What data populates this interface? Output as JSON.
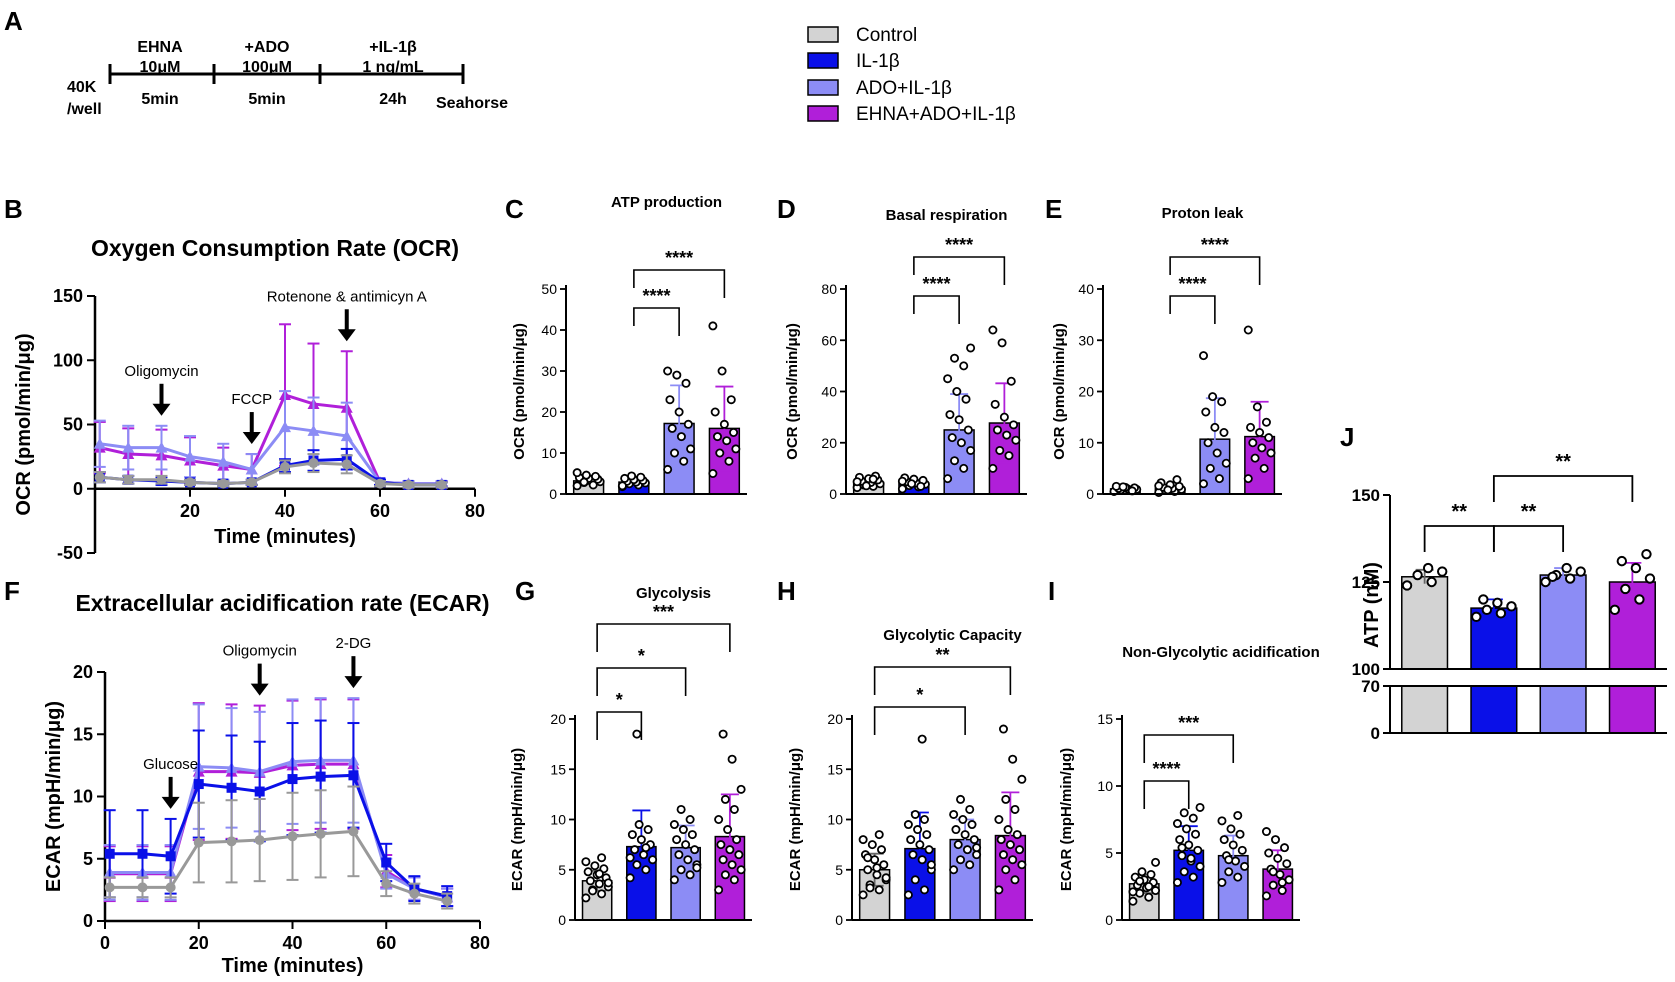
{
  "colors": {
    "control": "#d3d3d3",
    "il1b": "#0a10e8",
    "ado": "#8c8cf5",
    "ehna": "#b01fd9",
    "grey_line": "#999999"
  },
  "panel_letters": [
    "A",
    "B",
    "C",
    "D",
    "E",
    "F",
    "G",
    "H",
    "I",
    "J"
  ],
  "legend": [
    "Control",
    "IL-1β",
    "ADO+IL-1β",
    "EHNA+ADO+IL-1β"
  ],
  "timeline": {
    "start_top": "40K",
    "start_bottom": "/well",
    "steps": [
      {
        "top1": "EHNA",
        "top2": "10μM",
        "bottom": "5min"
      },
      {
        "top1": "+ADO",
        "top2": "100μM",
        "bottom": "5min"
      },
      {
        "top1": "+IL-1β",
        "top2": "1 ng/mL",
        "bottom": "24h"
      }
    ],
    "end": "Seahorse"
  },
  "chart_data": [
    {
      "id": "B",
      "type": "line",
      "title": "Oxygen Consumption Rate (OCR)",
      "xlabel": "Time (minutes)",
      "ylabel": "OCR (pmol/min/μg)",
      "xlim": [
        0,
        80
      ],
      "ylim": [
        -50,
        150
      ],
      "xticks": [
        20,
        40,
        60,
        80
      ],
      "yticks": [
        -50,
        0,
        50,
        100,
        150
      ],
      "x": [
        1,
        7,
        14,
        20,
        27,
        33,
        40,
        46,
        53,
        60,
        66,
        73
      ],
      "series": [
        {
          "name": "Control",
          "color": "#999999",
          "marker": "circle",
          "values": [
            9,
            7,
            7,
            5,
            4,
            5,
            17,
            20,
            19,
            4,
            3,
            3
          ],
          "err": [
            4,
            3,
            3,
            2,
            2,
            2,
            5,
            7,
            7,
            2,
            2,
            2
          ]
        },
        {
          "name": "IL-1β",
          "color": "#0a10e8",
          "marker": "square",
          "values": [
            9,
            7,
            6,
            5,
            4,
            5,
            18,
            22,
            23,
            5,
            3,
            3
          ],
          "err": [
            4,
            3,
            3,
            2,
            2,
            2,
            5,
            8,
            8,
            2,
            2,
            2
          ]
        },
        {
          "name": "ADO+IL-1β",
          "color": "#8c8cf5",
          "marker": "triangle",
          "values": [
            35,
            32,
            32,
            25,
            21,
            15,
            48,
            45,
            41,
            5,
            4,
            4
          ],
          "err": [
            18,
            17,
            17,
            16,
            14,
            12,
            28,
            26,
            26,
            3,
            2,
            2
          ]
        },
        {
          "name": "EHNA+ADO+IL-1β",
          "color": "#b01fd9",
          "marker": "triangle",
          "values": [
            32,
            27,
            26,
            22,
            18,
            15,
            73,
            66,
            63,
            5,
            4,
            4
          ],
          "err": [
            20,
            20,
            20,
            18,
            14,
            12,
            55,
            47,
            44,
            3,
            2,
            2
          ]
        }
      ],
      "annotations": [
        {
          "label": "Oligomycin",
          "x": 14
        },
        {
          "label": "FCCP",
          "x": 33
        },
        {
          "label": "Rotenone & antimicyn A",
          "x": 53
        }
      ]
    },
    {
      "id": "C",
      "type": "bar",
      "title": "ATP production",
      "ylabel": "OCR (pmol/min/μg)",
      "ylim": [
        0,
        50
      ],
      "yticks": [
        0,
        10,
        20,
        30,
        40,
        50
      ],
      "categories": [
        "Control",
        "IL-1β",
        "ADO+IL-1β",
        "EHNA+ADO+IL-1β"
      ],
      "values": [
        3.2,
        2.9,
        17.2,
        16.0
      ],
      "err": [
        0.8,
        0.8,
        9.3,
        10.2
      ],
      "points": [
        [
          2.0,
          2.5,
          2.8,
          3.0,
          3.2,
          3.4,
          3.6,
          3.8,
          4.0,
          4.3,
          4.6,
          5.2,
          2.2,
          2.9
        ],
        [
          1.8,
          2.2,
          2.5,
          2.7,
          2.9,
          3.1,
          3.3,
          3.5,
          3.8,
          4.1,
          4.4,
          2.0
        ],
        [
          6,
          8,
          10,
          11,
          14,
          16,
          17,
          20,
          23,
          27,
          29,
          30
        ],
        [
          5,
          8,
          10,
          11,
          13,
          14,
          15,
          17,
          20,
          23,
          30,
          41
        ]
      ],
      "sig": [
        {
          "from": 1,
          "to": 2,
          "label": "****",
          "level": 1
        },
        {
          "from": 1,
          "to": 3,
          "label": "****",
          "level": 2
        }
      ]
    },
    {
      "id": "D",
      "type": "bar",
      "title": "Basal respiration",
      "ylabel": "OCR (pmol/min/μg)",
      "ylim": [
        0,
        80
      ],
      "yticks": [
        0,
        20,
        40,
        60,
        80
      ],
      "categories": [
        "Control",
        "IL-1β",
        "ADO+IL-1β",
        "EHNA+ADO+IL-1β"
      ],
      "values": [
        4.5,
        4.2,
        25.0,
        27.7
      ],
      "err": [
        1.2,
        1.2,
        14.0,
        15.5
      ],
      "points": [
        [
          2.5,
          3,
          3.5,
          4,
          4.5,
          5,
          5.5,
          6,
          6.5,
          7,
          3.2,
          4.8,
          5.8
        ],
        [
          2,
          2.8,
          3.3,
          3.8,
          4.3,
          4.8,
          5.3,
          5.8,
          6.3,
          3,
          4,
          5
        ],
        [
          6,
          10,
          13,
          17,
          20,
          22,
          25,
          29,
          31,
          37,
          40,
          45,
          50,
          53,
          57
        ],
        [
          10,
          15,
          17,
          21,
          23,
          25,
          27,
          30,
          35,
          44,
          59,
          64
        ]
      ],
      "sig": [
        {
          "from": 1,
          "to": 2,
          "label": "****",
          "level": 1
        },
        {
          "from": 1,
          "to": 3,
          "label": "****",
          "level": 2
        }
      ]
    },
    {
      "id": "E",
      "type": "bar",
      "title": "Proton leak",
      "ylabel": "OCR (pmol/min/μg)",
      "ylim": [
        0,
        40
      ],
      "yticks": [
        0,
        10,
        20,
        30,
        40
      ],
      "categories": [
        "Control",
        "IL-1β",
        "ADO+IL-1β",
        "EHNA+ADO+IL-1β"
      ],
      "values": [
        1.0,
        1.1,
        10.7,
        11.2
      ],
      "err": [
        0.4,
        0.5,
        8.0,
        6.8
      ],
      "points": [
        [
          0.5,
          0.7,
          0.8,
          0.9,
          1.0,
          1.1,
          1.2,
          1.3,
          1.5,
          0.6,
          1.4
        ],
        [
          0.3,
          0.5,
          0.7,
          0.9,
          1.1,
          1.3,
          1.5,
          1.8,
          2.2,
          2.8,
          0.8,
          1.6
        ],
        [
          2,
          3,
          5,
          6,
          8,
          10,
          12,
          13,
          16,
          18,
          19,
          27
        ],
        [
          3,
          5,
          7,
          8,
          9,
          10,
          11,
          12,
          13,
          14,
          17,
          32
        ]
      ],
      "sig": [
        {
          "from": 1,
          "to": 2,
          "label": "****",
          "level": 1
        },
        {
          "from": 1,
          "to": 3,
          "label": "****",
          "level": 2
        }
      ]
    },
    {
      "id": "F",
      "type": "line",
      "title": "Extracellular acidification rate (ECAR)",
      "xlabel": "Time (minutes)",
      "ylabel": "ECAR (mpH/min/μg)",
      "xlim": [
        0,
        80
      ],
      "ylim": [
        0,
        20
      ],
      "xticks": [
        0,
        20,
        40,
        60,
        80
      ],
      "yticks": [
        0,
        5,
        10,
        15,
        20
      ],
      "x": [
        1,
        8,
        14,
        20,
        27,
        33,
        40,
        46,
        53,
        60,
        66,
        73
      ],
      "series": [
        {
          "name": "Control",
          "color": "#999999",
          "marker": "circle",
          "values": [
            2.7,
            2.7,
            2.7,
            6.3,
            6.4,
            6.5,
            6.8,
            7.0,
            7.2,
            3.0,
            2.2,
            1.6
          ],
          "err": [
            0.8,
            0.8,
            0.8,
            3.2,
            3.3,
            3.3,
            3.5,
            3.5,
            3.6,
            1.0,
            0.8,
            0.6
          ]
        },
        {
          "name": "IL-1β",
          "color": "#0a10e8",
          "marker": "square",
          "values": [
            5.4,
            5.4,
            5.2,
            11.0,
            10.7,
            10.4,
            11.4,
            11.6,
            11.7,
            4.7,
            2.6,
            2.0
          ],
          "err": [
            3.5,
            3.5,
            3.0,
            4.3,
            4.2,
            4.0,
            4.5,
            4.5,
            4.2,
            1.5,
            1.0,
            0.8
          ]
        },
        {
          "name": "ADO+IL-1β",
          "color": "#8c8cf5",
          "marker": "triangle",
          "values": [
            3.9,
            3.9,
            3.9,
            12.4,
            12.3,
            12.0,
            12.8,
            12.9,
            12.9,
            3.8,
            2.6,
            1.9
          ],
          "err": [
            2.2,
            2.2,
            2.2,
            5.0,
            4.8,
            4.8,
            5.0,
            5.0,
            5.0,
            1.2,
            0.9,
            0.7
          ]
        },
        {
          "name": "EHNA+ADO+IL-1β",
          "color": "#b01fd9",
          "marker": "triangle",
          "values": [
            3.8,
            3.8,
            3.8,
            12.0,
            12.0,
            11.9,
            12.5,
            12.6,
            12.6,
            4.0,
            2.6,
            1.9
          ],
          "err": [
            2.2,
            2.2,
            2.2,
            5.5,
            5.4,
            5.4,
            5.2,
            5.2,
            5.2,
            1.3,
            0.9,
            0.7
          ]
        }
      ],
      "annotations": [
        {
          "label": "Glucose",
          "x": 14
        },
        {
          "label": "Oligomycin",
          "x": 33
        },
        {
          "label": "2-DG",
          "x": 53
        }
      ]
    },
    {
      "id": "G",
      "type": "bar",
      "title": "Glycolysis",
      "ylabel": "ECAR (mpH/min/μg)",
      "ylim": [
        0,
        20
      ],
      "yticks": [
        0,
        5,
        10,
        15,
        20
      ],
      "categories": [
        "Control",
        "IL-1β",
        "ADO+IL-1β",
        "EHNA+ADO+IL-1β"
      ],
      "values": [
        3.9,
        7.3,
        7.2,
        8.3
      ],
      "err": [
        1.0,
        3.6,
        2.2,
        4.2
      ],
      "points": [
        [
          2.2,
          2.6,
          3.0,
          3.3,
          3.6,
          3.9,
          4.2,
          4.5,
          4.8,
          5.1,
          5.4,
          5.8,
          6.2,
          2.9,
          3.7,
          4.6
        ],
        [
          4.2,
          5.0,
          5.5,
          6.0,
          6.5,
          7.0,
          7.5,
          8.0,
          8.5,
          9.0,
          9.5,
          6.2,
          7.2,
          18.5
        ],
        [
          4.0,
          4.5,
          5.0,
          5.5,
          6.0,
          6.5,
          7.0,
          7.5,
          8.0,
          8.5,
          9.0,
          9.5,
          10.0,
          11.0,
          5.2
        ],
        [
          3.0,
          4.0,
          4.5,
          5.0,
          5.5,
          6.0,
          6.5,
          7.0,
          7.5,
          8.0,
          9.0,
          10.0,
          11.0,
          12.0,
          13.0,
          16.0,
          18.5
        ]
      ],
      "sig": [
        {
          "from": 0,
          "to": 1,
          "label": "*",
          "level": 1
        },
        {
          "from": 0,
          "to": 2,
          "label": "*",
          "level": 2
        },
        {
          "from": 0,
          "to": 3,
          "label": "***",
          "level": 3
        }
      ]
    },
    {
      "id": "H",
      "type": "bar",
      "title": "Glycolytic Capacity",
      "ylabel": "ECAR (mpH/min/μg)",
      "ylim": [
        0,
        20
      ],
      "yticks": [
        0,
        5,
        10,
        15,
        20
      ],
      "categories": [
        "Control",
        "IL-1β",
        "ADO+IL-1β",
        "EHNA+ADO+IL-1β"
      ],
      "values": [
        5.0,
        7.1,
        8.0,
        8.4
      ],
      "err": [
        1.6,
        3.6,
        2.0,
        4.3
      ],
      "points": [
        [
          2.5,
          3.0,
          3.5,
          4.0,
          4.5,
          5.0,
          5.5,
          6.0,
          6.5,
          7.0,
          7.5,
          8.0,
          8.5,
          3.2,
          4.2,
          5.2,
          6.2
        ],
        [
          2.5,
          3.0,
          4.0,
          5.0,
          6.0,
          6.5,
          7.0,
          7.5,
          8.0,
          8.5,
          9.0,
          9.5,
          10.0,
          10.5,
          5.5,
          18.0
        ],
        [
          5.0,
          5.5,
          6.0,
          6.5,
          7.0,
          7.5,
          8.0,
          8.5,
          9.0,
          9.5,
          10.0,
          10.5,
          11.0,
          12.0,
          7.2
        ],
        [
          3.0,
          4.0,
          5.0,
          5.5,
          6.0,
          6.5,
          7.0,
          7.5,
          8.0,
          8.5,
          9.0,
          10.0,
          11.0,
          12.0,
          14.0,
          16.0,
          19.0
        ]
      ],
      "sig": [
        {
          "from": 0,
          "to": 2,
          "label": "*",
          "level": 1
        },
        {
          "from": 0,
          "to": 3,
          "label": "**",
          "level": 2
        }
      ]
    },
    {
      "id": "I",
      "type": "bar",
      "title": "Non-Glycolytic acidification",
      "ylabel": "ECAR (mpH/min/μg)",
      "ylim": [
        0,
        15
      ],
      "yticks": [
        0,
        5,
        10,
        15
      ],
      "categories": [
        "Control",
        "IL-1β",
        "ADO+IL-1β",
        "EHNA+ADO+IL-1β"
      ],
      "values": [
        2.7,
        5.2,
        4.8,
        3.8
      ],
      "err": [
        0.7,
        1.8,
        1.5,
        1.4
      ],
      "points": [
        [
          1.4,
          1.7,
          2.0,
          2.2,
          2.4,
          2.6,
          2.8,
          3.0,
          3.2,
          3.4,
          3.6,
          2.1,
          2.5,
          2.9,
          4.3
        ],
        [
          2.8,
          3.2,
          3.6,
          4.0,
          4.4,
          4.8,
          5.2,
          5.6,
          6.0,
          6.4,
          6.8,
          7.2,
          7.6,
          8.0,
          8.4,
          4.6,
          5.4
        ],
        [
          2.8,
          3.2,
          3.6,
          4.0,
          4.4,
          4.8,
          5.2,
          5.6,
          6.0,
          6.4,
          6.8,
          7.4,
          7.8,
          4.5
        ],
        [
          1.8,
          2.2,
          2.6,
          3.0,
          3.4,
          3.8,
          4.2,
          4.6,
          5.0,
          5.4,
          6.0,
          6.6,
          2.8,
          3.6
        ]
      ],
      "sig": [
        {
          "from": 0,
          "to": 1,
          "label": "****",
          "level": 1
        },
        {
          "from": 0,
          "to": 2,
          "label": "***",
          "level": 2
        }
      ]
    },
    {
      "id": "J",
      "type": "bar",
      "ylabel": "ATP (nM)",
      "axis_break": true,
      "lower_ylim": [
        0,
        70
      ],
      "upper_ylim": [
        100,
        150
      ],
      "lower_ticks": [
        0,
        70
      ],
      "upper_ticks": [
        100,
        125,
        150
      ],
      "categories": [
        "Control",
        "IL-1β",
        "ADO+IL-1β",
        "EHNA+ADO+IL-1β"
      ],
      "values": [
        126.5,
        117.5,
        127.0,
        125.0
      ],
      "err": [
        2.0,
        2.5,
        2.0,
        5.5
      ],
      "points": [
        [
          124,
          125,
          127,
          128,
          129
        ],
        [
          115,
          116,
          117,
          118,
          119,
          120
        ],
        [
          125,
          126,
          127,
          128,
          129,
          126.5
        ],
        [
          117,
          120,
          123,
          126,
          129,
          131,
          133
        ]
      ],
      "sig": [
        {
          "from": 0,
          "to": 1,
          "label": "**",
          "level": 1
        },
        {
          "from": 1,
          "to": 2,
          "label": "**",
          "level": 1
        },
        {
          "from": 1,
          "to": 3,
          "label": "**",
          "level": 2
        }
      ]
    }
  ]
}
